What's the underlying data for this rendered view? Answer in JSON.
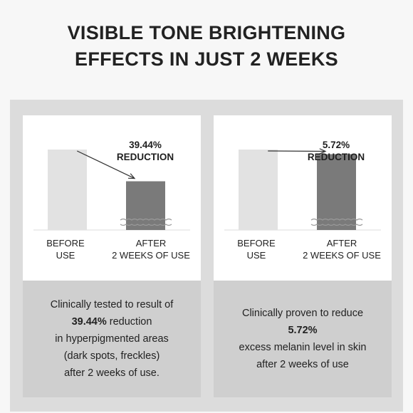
{
  "header": {
    "title_line1": "VISIBLE TONE BRIGHTENING",
    "title_line2": "EFFECTS IN JUST 2 WEEKS"
  },
  "colors": {
    "before_bar": "#e2e2e2",
    "after_bar": "#7a7a7a",
    "band": "#dcdcdc",
    "description_bg": "#cfcfcf",
    "arrow": "#333333"
  },
  "chart_data": [
    {
      "type": "bar",
      "categories": [
        "BEFORE USE",
        "AFTER 2 WEEKS OF USE"
      ],
      "values": [
        100,
        60.56
      ],
      "annotation": [
        "39.44%",
        "REDUCTION"
      ],
      "title": "",
      "xlabel": "",
      "ylabel": "",
      "ylim": [
        0,
        100
      ]
    },
    {
      "type": "bar",
      "categories": [
        "BEFORE USE",
        "AFTER 2 WEEKS OF USE"
      ],
      "values": [
        100,
        94.28
      ],
      "annotation": [
        "5.72%",
        "REDUCTION"
      ],
      "title": "",
      "xlabel": "",
      "ylabel": "",
      "ylim": [
        0,
        100
      ]
    }
  ],
  "panels": [
    {
      "before_label": [
        "BEFORE",
        "USE"
      ],
      "after_label": [
        "AFTER",
        "2 WEEKS OF USE"
      ],
      "description": [
        {
          "text": "Clinically tested to result of",
          "bold": false
        },
        {
          "text": "39.44% reduction",
          "bold": false,
          "bold_part": "39.44%",
          "rest": " reduction"
        },
        {
          "text": "in hyperpigmented areas",
          "bold": false
        },
        {
          "text": "(dark spots, freckles)",
          "bold": false
        },
        {
          "text": "after 2 weeks of use.",
          "bold": false
        }
      ]
    },
    {
      "before_label": [
        "BEFORE",
        "USE"
      ],
      "after_label": [
        "AFTER",
        "2 WEEKS OF USE"
      ],
      "description": [
        {
          "text": "Clinically proven to reduce",
          "bold": false
        },
        {
          "text": "5.72%",
          "bold": true
        },
        {
          "text": "excess melanin level in skin",
          "bold": false
        },
        {
          "text": "after 2 weeks of use",
          "bold": false
        }
      ]
    }
  ]
}
